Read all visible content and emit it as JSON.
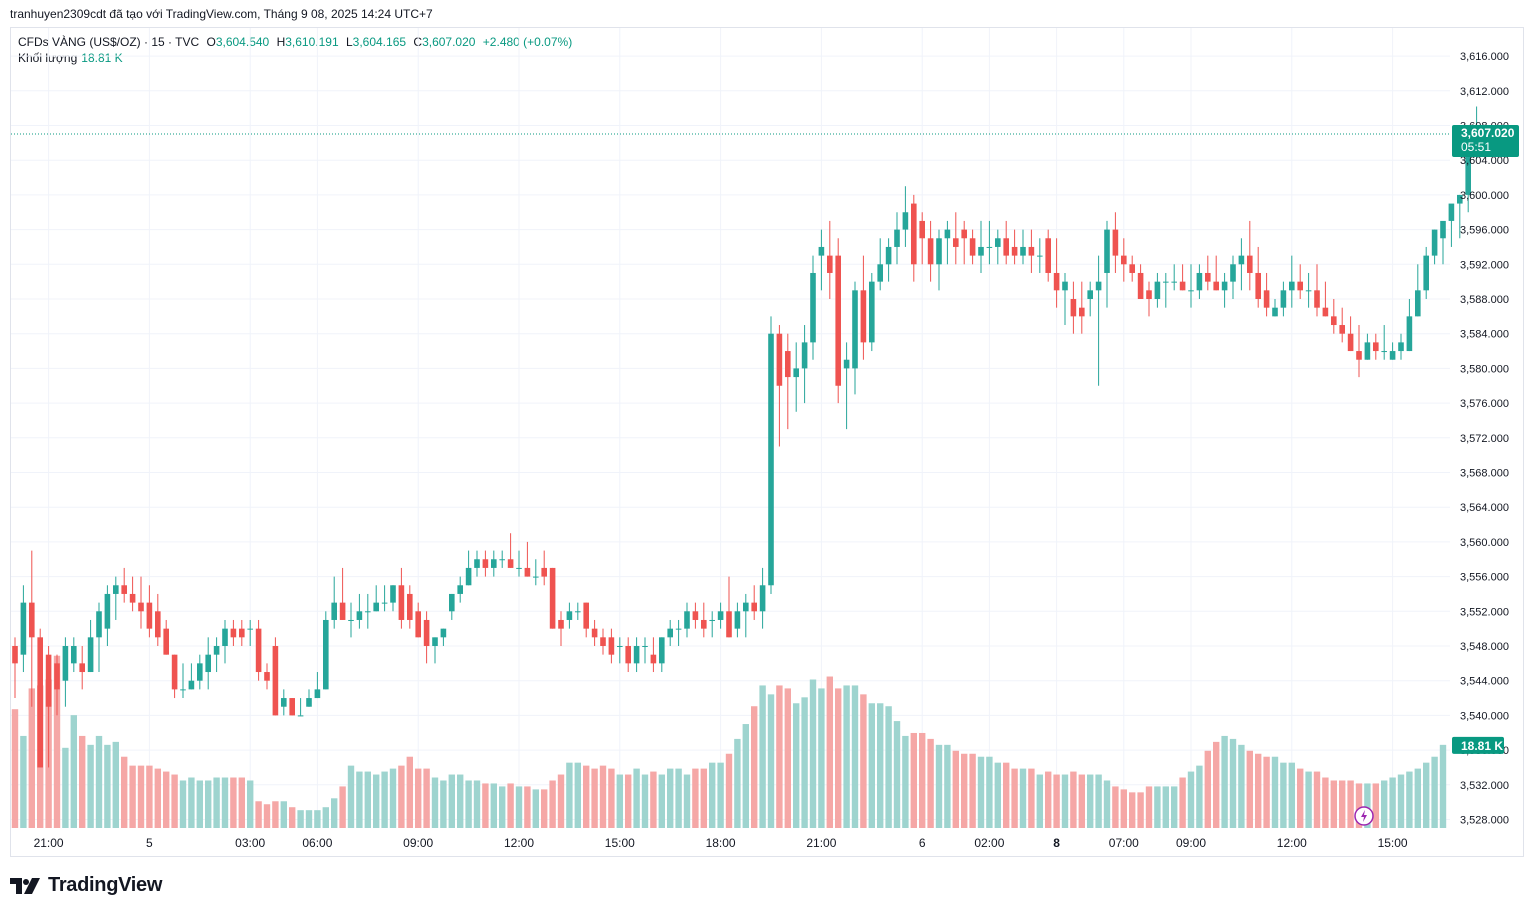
{
  "header": {
    "topline": "tranhuyen2309cdt đã tạo với TradingView.com, Tháng 9 08, 2025 14:24 UTC+7"
  },
  "legend": {
    "symbol": "CFDs VÀNG (US$/OZ) · 15 · TVC",
    "o_label": "O",
    "o_value": "3,604.540",
    "h_label": "H",
    "h_value": "3,610.191",
    "l_label": "L",
    "l_value": "3,604.165",
    "c_label": "C",
    "c_value": "3,607.020",
    "change": "+2.480 (+0.07%)",
    "volume_label": "Khối lượng",
    "volume_value": "18.81 K"
  },
  "brand": {
    "name": "TradingView",
    "icon": "tradingview-logo-icon"
  },
  "colors": {
    "up": "#26a69a",
    "down": "#ef5350",
    "vol_up": "#9ed4cf",
    "vol_down": "#f5a7a6",
    "grid": "#f0f3fa",
    "price_tag": "#089981"
  },
  "chart_data": {
    "type": "candlestick",
    "ylim": [
      3526,
      3620
    ],
    "y_ticks": [
      "3,616.000",
      "3,612.000",
      "3,608.000",
      "3,604.000",
      "3,600.000",
      "3,596.000",
      "3,592.000",
      "3,588.000",
      "3,584.000",
      "3,580.000",
      "3,576.000",
      "3,572.000",
      "3,568.000",
      "3,564.000",
      "3,560.000",
      "3,556.000",
      "3,552.000",
      "3,548.000",
      "3,544.000",
      "3,540.000",
      "3,536.000",
      "3,532.000",
      "3,528.000"
    ],
    "x_ticks": [
      {
        "label": "21:00",
        "bar": 4,
        "bold": false
      },
      {
        "label": "5",
        "bar": 16,
        "bold": false
      },
      {
        "label": "03:00",
        "bar": 28,
        "bold": false
      },
      {
        "label": "06:00",
        "bar": 36,
        "bold": false
      },
      {
        "label": "09:00",
        "bar": 48,
        "bold": false
      },
      {
        "label": "12:00",
        "bar": 60,
        "bold": false
      },
      {
        "label": "15:00",
        "bar": 72,
        "bold": false
      },
      {
        "label": "18:00",
        "bar": 84,
        "bold": false
      },
      {
        "label": "21:00",
        "bar": 96,
        "bold": false
      },
      {
        "label": "6",
        "bar": 108,
        "bold": false
      },
      {
        "label": "02:00",
        "bar": 116,
        "bold": false
      },
      {
        "label": "8",
        "bar": 124,
        "bold": true
      },
      {
        "label": "07:00",
        "bar": 132,
        "bold": false
      },
      {
        "label": "09:00",
        "bar": 140,
        "bold": false
      },
      {
        "label": "12:00",
        "bar": 152,
        "bold": false
      },
      {
        "label": "15:00",
        "bar": 164,
        "bold": false
      }
    ],
    "last_price": "3,607.020",
    "last_value": 3607.02,
    "countdown": "05:51",
    "volume_last": "18.81 K",
    "candles_ohlc": [
      [
        3548,
        3549,
        3542,
        3546
      ],
      [
        3547,
        3555,
        3545,
        3553
      ],
      [
        3553,
        3559,
        3541,
        3549
      ],
      [
        3549,
        3550,
        3540,
        3534
      ],
      [
        3547,
        3548,
        3534,
        3541
      ],
      [
        3546,
        3547,
        3540,
        3543
      ],
      [
        3544,
        3549,
        3541,
        3548
      ],
      [
        3546,
        3549,
        3545,
        3548
      ],
      [
        3546,
        3548,
        3543,
        3545
      ],
      [
        3545,
        3551,
        3545,
        3549
      ],
      [
        3549,
        3553,
        3545,
        3552
      ],
      [
        3550,
        3555,
        3548,
        3554
      ],
      [
        3554,
        3556,
        3551,
        3555
      ],
      [
        3555,
        3557,
        3553,
        3554
      ],
      [
        3554,
        3556,
        3552,
        3553
      ],
      [
        3553,
        3556,
        3550,
        3552
      ],
      [
        3553,
        3555,
        3549,
        3550
      ],
      [
        3552,
        3554,
        3548,
        3549
      ],
      [
        3550,
        3551,
        3547,
        3547
      ],
      [
        3547,
        3547,
        3542,
        3543
      ],
      [
        3543,
        3546,
        3542,
        3543
      ],
      [
        3543,
        3546,
        3543,
        3544
      ],
      [
        3544,
        3547,
        3543,
        3546
      ],
      [
        3545,
        3549,
        3543,
        3547
      ],
      [
        3547,
        3549,
        3545,
        3548
      ],
      [
        3548,
        3551,
        3546,
        3550
      ],
      [
        3550,
        3551,
        3548,
        3549
      ],
      [
        3550,
        3551,
        3548,
        3549
      ],
      [
        3550,
        3551,
        3548,
        3550
      ],
      [
        3550,
        3551,
        3544,
        3545
      ],
      [
        3545,
        3546,
        3543,
        3544
      ],
      [
        3548,
        3549,
        3540,
        3540
      ],
      [
        3541,
        3543,
        3540,
        3542
      ],
      [
        3542,
        3542,
        3540,
        3540
      ],
      [
        3540,
        3542,
        3540,
        3540
      ],
      [
        3541,
        3543,
        3541,
        3542
      ],
      [
        3542,
        3545,
        3542,
        3543
      ],
      [
        3543,
        3552,
        3543,
        3551
      ],
      [
        3551,
        3556,
        3550,
        3553
      ],
      [
        3553,
        3557,
        3551,
        3551
      ],
      [
        3551,
        3553,
        3549,
        3551
      ],
      [
        3551,
        3554,
        3550,
        3552
      ],
      [
        3552,
        3554,
        3550,
        3552
      ],
      [
        3552,
        3555,
        3552,
        3553
      ],
      [
        3553,
        3555,
        3552,
        3553
      ],
      [
        3553,
        3555,
        3552,
        3555
      ],
      [
        3555,
        3557,
        3550,
        3551
      ],
      [
        3554,
        3555,
        3550,
        3551
      ],
      [
        3552,
        3553,
        3549,
        3549
      ],
      [
        3551,
        3552,
        3546,
        3548
      ],
      [
        3548,
        3549,
        3546,
        3549
      ],
      [
        3549,
        3550,
        3548,
        3550
      ],
      [
        3552,
        3554,
        3551,
        3554
      ],
      [
        3554,
        3556,
        3553,
        3555
      ],
      [
        3555,
        3559,
        3555,
        3557
      ],
      [
        3557,
        3559,
        3556,
        3558
      ],
      [
        3558,
        3559,
        3556,
        3557
      ],
      [
        3557,
        3559,
        3556,
        3558
      ],
      [
        3558,
        3559,
        3557,
        3558
      ],
      [
        3558,
        3561,
        3557,
        3557
      ],
      [
        3557,
        3559,
        3556,
        3557
      ],
      [
        3557,
        3560,
        3556,
        3556
      ],
      [
        3556,
        3558,
        3555,
        3556
      ],
      [
        3557,
        3559,
        3555,
        3556
      ],
      [
        3557,
        3557,
        3550,
        3550
      ],
      [
        3551,
        3552,
        3548,
        3550
      ],
      [
        3551,
        3553,
        3550,
        3552
      ],
      [
        3552,
        3553,
        3551,
        3552
      ],
      [
        3553,
        3553,
        3549,
        3550
      ],
      [
        3550,
        3551,
        3548,
        3549
      ],
      [
        3549,
        3550,
        3547,
        3548
      ],
      [
        3549,
        3550,
        3546,
        3547
      ],
      [
        3548,
        3549,
        3546,
        3548
      ],
      [
        3548,
        3549,
        3545,
        3546
      ],
      [
        3546,
        3549,
        3545,
        3548
      ],
      [
        3548,
        3549,
        3546,
        3548
      ],
      [
        3547,
        3549,
        3545,
        3546
      ],
      [
        3546,
        3549,
        3545,
        3549
      ],
      [
        3549,
        3551,
        3548,
        3550
      ],
      [
        3550,
        3551,
        3548,
        3550
      ],
      [
        3550,
        3553,
        3549,
        3552
      ],
      [
        3552,
        3553,
        3550,
        3551
      ],
      [
        3551,
        3553,
        3549,
        3550
      ],
      [
        3551,
        3552,
        3549,
        3551
      ],
      [
        3551,
        3553,
        3550,
        3552
      ],
      [
        3552,
        3556,
        3549,
        3549
      ],
      [
        3550,
        3553,
        3549,
        3552
      ],
      [
        3552,
        3554,
        3549,
        3553
      ],
      [
        3553,
        3555,
        3551,
        3552
      ],
      [
        3552,
        3557,
        3550,
        3555
      ],
      [
        3555,
        3586,
        3554,
        3584
      ],
      [
        3584,
        3585,
        3571,
        3578
      ],
      [
        3582,
        3584,
        3573,
        3579
      ],
      [
        3579,
        3583,
        3575,
        3580
      ],
      [
        3580,
        3585,
        3576,
        3583
      ],
      [
        3583,
        3593,
        3581,
        3591
      ],
      [
        3593,
        3596,
        3589,
        3594
      ],
      [
        3593,
        3597,
        3588,
        3591
      ],
      [
        3593,
        3595,
        3576,
        3578
      ],
      [
        3580,
        3583,
        3573,
        3581
      ],
      [
        3580,
        3590,
        3577,
        3589
      ],
      [
        3589,
        3593,
        3581,
        3583
      ],
      [
        3583,
        3591,
        3582,
        3590
      ],
      [
        3590,
        3595,
        3589,
        3592
      ],
      [
        3592,
        3595,
        3590,
        3594
      ],
      [
        3594,
        3598,
        3592,
        3596
      ],
      [
        3596,
        3601,
        3594,
        3598
      ],
      [
        3599,
        3600,
        3590,
        3592
      ],
      [
        3597,
        3598,
        3592,
        3595
      ],
      [
        3595,
        3597,
        3590,
        3592
      ],
      [
        3592,
        3596,
        3589,
        3595
      ],
      [
        3595,
        3597,
        3592,
        3596
      ],
      [
        3595,
        3598,
        3592,
        3594
      ],
      [
        3596,
        3597,
        3592,
        3595
      ],
      [
        3595,
        3596,
        3592,
        3593
      ],
      [
        3593,
        3597,
        3591,
        3594
      ],
      [
        3594,
        3597,
        3592,
        3594
      ],
      [
        3594,
        3596,
        3592,
        3595
      ],
      [
        3595,
        3597,
        3592,
        3593
      ],
      [
        3594,
        3596,
        3592,
        3593
      ],
      [
        3593,
        3596,
        3592,
        3594
      ],
      [
        3594,
        3596,
        3591,
        3593
      ],
      [
        3593,
        3595,
        3591,
        3593
      ],
      [
        3595,
        3596,
        3590,
        3591
      ],
      [
        3591,
        3595,
        3587,
        3589
      ],
      [
        3589,
        3591,
        3585,
        3590
      ],
      [
        3588,
        3590,
        3584,
        3586
      ],
      [
        3587,
        3590,
        3584,
        3586
      ],
      [
        3588,
        3590,
        3586,
        3589
      ],
      [
        3589,
        3593,
        3578,
        3590
      ],
      [
        3591,
        3597,
        3587,
        3596
      ],
      [
        3596,
        3598,
        3591,
        3593
      ],
      [
        3593,
        3595,
        3590,
        3592
      ],
      [
        3592,
        3593,
        3590,
        3591
      ],
      [
        3591,
        3592,
        3589,
        3588
      ],
      [
        3589,
        3590,
        3586,
        3588
      ],
      [
        3588,
        3591,
        3587,
        3590
      ],
      [
        3590,
        3591,
        3587,
        3590
      ],
      [
        3590,
        3592,
        3589,
        3590
      ],
      [
        3590,
        3592,
        3589,
        3589
      ],
      [
        3589,
        3592,
        3587,
        3589
      ],
      [
        3589,
        3592,
        3588,
        3591
      ],
      [
        3591,
        3593,
        3589,
        3590
      ],
      [
        3590,
        3593,
        3589,
        3589
      ],
      [
        3589,
        3591,
        3587,
        3590
      ],
      [
        3590,
        3593,
        3588,
        3592
      ],
      [
        3592,
        3595,
        3589,
        3593
      ],
      [
        3593,
        3597,
        3589,
        3591
      ],
      [
        3591,
        3594,
        3587,
        3588
      ],
      [
        3589,
        3591,
        3586,
        3587
      ],
      [
        3586,
        3588,
        3586,
        3587
      ],
      [
        3587,
        3590,
        3586,
        3589
      ],
      [
        3589,
        3593,
        3587,
        3590
      ],
      [
        3590,
        3592,
        3588,
        3589
      ],
      [
        3589,
        3591,
        3587,
        3589
      ],
      [
        3589,
        3592,
        3586,
        3587
      ],
      [
        3587,
        3590,
        3586,
        3586
      ],
      [
        3586,
        3588,
        3584,
        3585
      ],
      [
        3585,
        3587,
        3583,
        3584
      ],
      [
        3584,
        3586,
        3582,
        3582
      ],
      [
        3582,
        3585,
        3579,
        3581
      ],
      [
        3581,
        3584,
        3581,
        3583
      ],
      [
        3583,
        3584,
        3581,
        3582
      ],
      [
        3582,
        3585,
        3581,
        3582
      ],
      [
        3581,
        3583,
        3581,
        3582
      ],
      [
        3582,
        3584,
        3581,
        3583
      ],
      [
        3582,
        3588,
        3582,
        3586
      ],
      [
        3586,
        3592,
        3586,
        3589
      ],
      [
        3589,
        3594,
        3588,
        3593
      ],
      [
        3593,
        3596,
        3592,
        3596
      ],
      [
        3595,
        3596,
        3592,
        3597
      ],
      [
        3597,
        3598,
        3594,
        3599
      ],
      [
        3599,
        3600,
        3595,
        3600
      ],
      [
        3600,
        3606,
        3598,
        3606
      ],
      [
        3604.54,
        3610.191,
        3604.165,
        3607.02
      ]
    ],
    "volume": [
      40,
      31,
      47,
      48,
      50,
      58,
      27,
      38,
      31,
      28,
      31,
      28,
      29,
      24,
      21,
      21,
      21,
      20,
      19,
      18,
      16,
      17,
      16,
      16,
      17,
      17,
      17,
      17,
      16,
      9,
      8,
      9,
      9,
      7,
      6,
      6,
      6,
      7,
      10,
      14,
      21,
      19,
      19,
      18,
      19,
      20,
      21,
      24,
      20,
      20,
      17,
      16,
      18,
      18,
      16,
      16,
      15,
      15,
      14,
      15,
      14,
      14,
      13,
      13,
      16,
      18,
      22,
      22,
      21,
      20,
      21,
      20,
      18,
      18,
      20,
      18,
      19,
      18,
      20,
      20,
      18,
      20,
      20,
      22,
      22,
      25,
      30,
      35,
      41,
      48,
      45,
      48,
      47,
      42,
      44,
      50,
      47,
      51,
      47,
      48,
      48,
      45,
      42,
      42,
      41,
      36,
      31,
      32,
      32,
      30,
      28,
      28,
      26,
      25,
      25,
      24,
      24,
      22,
      22,
      20,
      20,
      20,
      18,
      19,
      18,
      18,
      19,
      18,
      18,
      18,
      16,
      14,
      13,
      12,
      12,
      14,
      14,
      14,
      14,
      17,
      19,
      21,
      26,
      29,
      31,
      30,
      28,
      26,
      25,
      24,
      24,
      22,
      22,
      20,
      19,
      19,
      17,
      16,
      16,
      16,
      15,
      15,
      15,
      16,
      17,
      18,
      19,
      20,
      22,
      24,
      28
    ]
  }
}
